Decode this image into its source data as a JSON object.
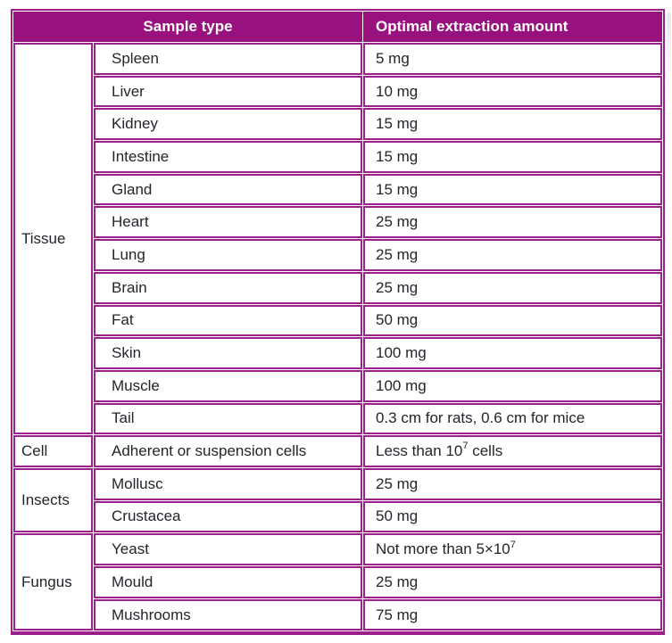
{
  "colors": {
    "header-bg": "#98117f",
    "border": "#9c1f8b",
    "text": "#26232b",
    "header-text": "#ffffff"
  },
  "table": {
    "headers": {
      "sample_type": "Sample type",
      "optimal_amount": "Optimal extraction amount"
    },
    "groups": [
      {
        "category": "Tissue",
        "rows": [
          {
            "sample": "Spleen",
            "amount": "5 mg"
          },
          {
            "sample": "Liver",
            "amount": "10 mg"
          },
          {
            "sample": "Kidney",
            "amount": "15 mg"
          },
          {
            "sample": "Intestine",
            "amount": "15 mg"
          },
          {
            "sample": "Gland",
            "amount": "15 mg"
          },
          {
            "sample": "Heart",
            "amount": "25 mg"
          },
          {
            "sample": "Lung",
            "amount": "25 mg"
          },
          {
            "sample": "Brain",
            "amount": "25 mg"
          },
          {
            "sample": "Fat",
            "amount": "50 mg"
          },
          {
            "sample": "Skin",
            "amount": "100 mg"
          },
          {
            "sample": "Muscle",
            "amount": "100 mg"
          },
          {
            "sample": "Tail",
            "amount": "0.3 cm for rats, 0.6 cm for mice"
          }
        ]
      },
      {
        "category": "Cell",
        "rows": [
          {
            "sample": "Adherent or suspension cells",
            "amount_parts": [
              "Less than 10",
              "7",
              " cells"
            ]
          }
        ]
      },
      {
        "category": "Insects",
        "rows": [
          {
            "sample": "Mollusc",
            "amount": "25 mg"
          },
          {
            "sample": "Crustacea",
            "amount": "50 mg"
          }
        ]
      },
      {
        "category": "Fungus",
        "rows": [
          {
            "sample": "Yeast",
            "amount_parts": [
              "Not more than 5×10",
              "7",
              ""
            ]
          },
          {
            "sample": "Mould",
            "amount": "25 mg"
          },
          {
            "sample": "Mushrooms",
            "amount": "75 mg"
          }
        ]
      }
    ]
  }
}
